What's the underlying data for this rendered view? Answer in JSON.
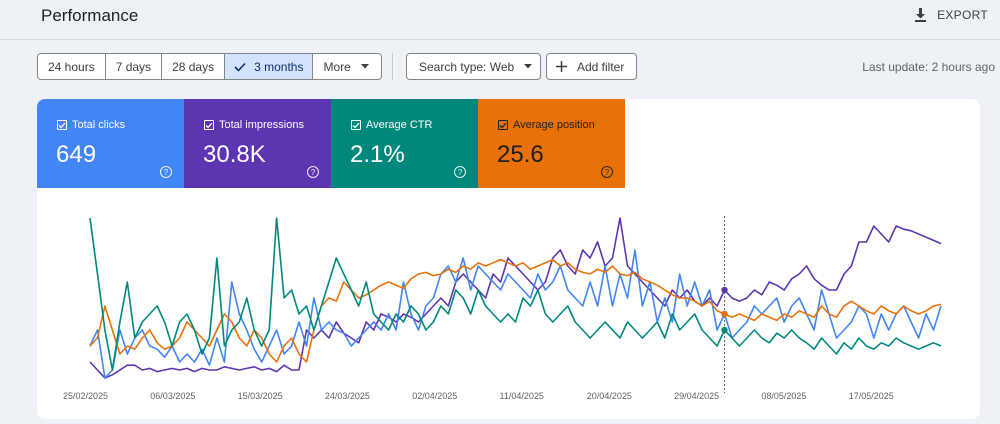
{
  "header": {
    "title": "Performance",
    "export_label": "EXPORT"
  },
  "toolbar": {
    "ranges": [
      {
        "label": "24 hours"
      },
      {
        "label": "7 days"
      },
      {
        "label": "28 days"
      },
      {
        "label": "3 months",
        "active": true
      },
      {
        "label": "More"
      }
    ],
    "search_type": "Search type: Web",
    "add_filter": "Add filter",
    "last_update": "Last update: 2 hours ago"
  },
  "metrics": [
    {
      "label": "Total clicks",
      "value": "649",
      "color": "#4285f4"
    },
    {
      "label": "Total impressions",
      "value": "30.8K",
      "color": "#5e35b1"
    },
    {
      "label": "Average CTR",
      "value": "2.1%",
      "color": "#00897b"
    },
    {
      "label": "Average position",
      "value": "25.6",
      "color": "#e8710a"
    }
  ],
  "chart_data": {
    "type": "line",
    "x_labels": [
      "25/02/2025",
      "06/03/2025",
      "15/03/2025",
      "24/03/2025",
      "02/04/2025",
      "11/04/2025",
      "20/04/2025",
      "29/04/2025",
      "08/05/2025",
      "17/05/2025"
    ],
    "hover_date": "29/04/2025",
    "grid": false,
    "legend": "none",
    "series": [
      {
        "name": "Total clicks",
        "color": "#4285f4",
        "values": [
          0.2,
          0.3,
          0.0,
          0.05,
          0.3,
          0.15,
          0.25,
          0.3,
          0.2,
          0.18,
          0.13,
          0.2,
          0.1,
          0.15,
          0.1,
          0.18,
          0.08,
          0.25,
          0.1,
          0.6,
          0.4,
          0.3,
          0.18,
          0.1,
          0.2,
          0.3,
          0.15,
          0.2,
          0.35,
          0.2,
          0.5,
          0.3,
          0.35,
          0.3,
          0.28,
          0.2,
          0.25,
          0.3,
          0.35,
          0.3,
          0.4,
          0.3,
          0.6,
          0.4,
          0.3,
          0.45,
          0.5,
          0.65,
          0.7,
          0.6,
          0.75,
          0.55,
          0.7,
          0.65,
          0.6,
          0.55,
          0.65,
          0.6,
          0.55,
          0.5,
          0.65,
          0.55,
          0.6,
          0.7,
          0.55,
          0.5,
          0.45,
          0.6,
          0.45,
          0.7,
          0.45,
          0.65,
          0.5,
          0.8,
          0.45,
          0.6,
          0.35,
          0.5,
          0.35,
          0.65,
          0.45,
          0.6,
          0.45,
          0.55,
          0.3,
          0.4,
          0.25,
          0.3,
          0.35,
          0.45,
          0.4,
          0.45,
          0.5,
          0.35,
          0.45,
          0.5,
          0.4,
          0.3,
          0.55,
          0.4,
          0.25,
          0.3,
          0.35,
          0.45,
          0.4,
          0.25,
          0.4,
          0.3,
          0.4,
          0.45,
          0.35,
          0.25,
          0.4,
          0.3,
          0.45
        ]
      },
      {
        "name": "Total impressions",
        "color": "#5e35b1",
        "values": [
          0.1,
          0.05,
          0.0,
          0.02,
          0.05,
          0.08,
          0.08,
          0.05,
          0.06,
          0.04,
          0.05,
          0.06,
          0.05,
          0.06,
          0.04,
          0.06,
          0.05,
          0.05,
          0.07,
          0.06,
          0.05,
          0.06,
          0.07,
          0.05,
          0.06,
          0.04,
          0.08,
          0.05,
          0.05,
          0.3,
          0.25,
          0.3,
          0.25,
          0.35,
          0.28,
          0.25,
          0.22,
          0.35,
          0.3,
          0.4,
          0.38,
          0.35,
          0.4,
          0.38,
          0.35,
          0.4,
          0.45,
          0.5,
          0.45,
          0.6,
          0.65,
          0.6,
          0.55,
          0.5,
          0.65,
          0.6,
          0.75,
          0.7,
          0.65,
          0.6,
          0.55,
          0.6,
          0.75,
          0.8,
          0.7,
          0.65,
          0.8,
          0.75,
          0.85,
          0.7,
          0.75,
          1.0,
          0.7,
          0.65,
          0.6,
          0.55,
          0.5,
          0.45,
          0.55,
          0.5,
          0.55,
          0.48,
          0.45,
          0.5,
          0.45,
          0.55,
          0.5,
          0.48,
          0.5,
          0.55,
          0.52,
          0.6,
          0.58,
          0.55,
          0.62,
          0.65,
          0.7,
          0.62,
          0.58,
          0.55,
          0.55,
          0.65,
          0.7,
          0.85,
          0.85,
          0.95,
          0.9,
          0.85,
          0.95,
          0.93,
          0.92,
          0.9,
          0.88,
          0.86,
          0.84
        ]
      },
      {
        "name": "Average CTR",
        "color": "#00897b",
        "values": [
          1.0,
          0.65,
          0.3,
          0.05,
          0.35,
          0.6,
          0.25,
          0.35,
          0.4,
          0.45,
          0.35,
          0.2,
          0.35,
          0.4,
          0.3,
          0.15,
          0.25,
          0.75,
          0.2,
          0.3,
          0.35,
          0.5,
          0.3,
          0.2,
          0.3,
          1.0,
          0.5,
          0.55,
          0.4,
          0.45,
          0.3,
          0.45,
          0.6,
          0.75,
          0.65,
          0.55,
          0.45,
          0.6,
          0.4,
          0.35,
          0.3,
          0.4,
          0.35,
          0.45,
          0.4,
          0.3,
          0.35,
          0.45,
          0.4,
          0.55,
          0.5,
          0.4,
          0.55,
          0.45,
          0.4,
          0.35,
          0.4,
          0.35,
          0.5,
          0.45,
          0.55,
          0.4,
          0.35,
          0.4,
          0.45,
          0.35,
          0.3,
          0.25,
          0.3,
          0.35,
          0.3,
          0.25,
          0.35,
          0.3,
          0.25,
          0.3,
          0.35,
          0.25,
          0.4,
          0.3,
          0.35,
          0.4,
          0.3,
          0.25,
          0.2,
          0.3,
          0.25,
          0.2,
          0.25,
          0.3,
          0.25,
          0.22,
          0.28,
          0.25,
          0.3,
          0.25,
          0.22,
          0.18,
          0.25,
          0.2,
          0.15,
          0.22,
          0.18,
          0.25,
          0.2,
          0.18,
          0.22,
          0.2,
          0.25,
          0.22,
          0.2,
          0.18,
          0.2,
          0.22,
          0.2
        ]
      },
      {
        "name": "Average position",
        "color": "#e8710a",
        "values": [
          0.2,
          0.25,
          0.45,
          0.3,
          0.15,
          0.2,
          0.18,
          0.25,
          0.3,
          0.22,
          0.18,
          0.2,
          0.25,
          0.35,
          0.3,
          0.25,
          0.2,
          0.3,
          0.4,
          0.35,
          0.25,
          0.2,
          0.3,
          0.25,
          0.15,
          0.1,
          0.2,
          0.25,
          0.15,
          0.1,
          0.3,
          0.45,
          0.5,
          0.48,
          0.6,
          0.55,
          0.5,
          0.52,
          0.55,
          0.58,
          0.6,
          0.58,
          0.56,
          0.62,
          0.65,
          0.66,
          0.64,
          0.65,
          0.68,
          0.66,
          0.7,
          0.68,
          0.72,
          0.7,
          0.72,
          0.74,
          0.72,
          0.7,
          0.72,
          0.68,
          0.7,
          0.72,
          0.74,
          0.7,
          0.72,
          0.68,
          0.66,
          0.65,
          0.68,
          0.66,
          0.7,
          0.65,
          0.64,
          0.66,
          0.62,
          0.6,
          0.58,
          0.55,
          0.52,
          0.5,
          0.5,
          0.48,
          0.45,
          0.48,
          0.42,
          0.4,
          0.38,
          0.4,
          0.38,
          0.36,
          0.4,
          0.38,
          0.36,
          0.4,
          0.38,
          0.42,
          0.4,
          0.38,
          0.45,
          0.4,
          0.38,
          0.45,
          0.48,
          0.45,
          0.42,
          0.4,
          0.45,
          0.42,
          0.4,
          0.45,
          0.42,
          0.4,
          0.42,
          0.45,
          0.46
        ]
      }
    ]
  }
}
